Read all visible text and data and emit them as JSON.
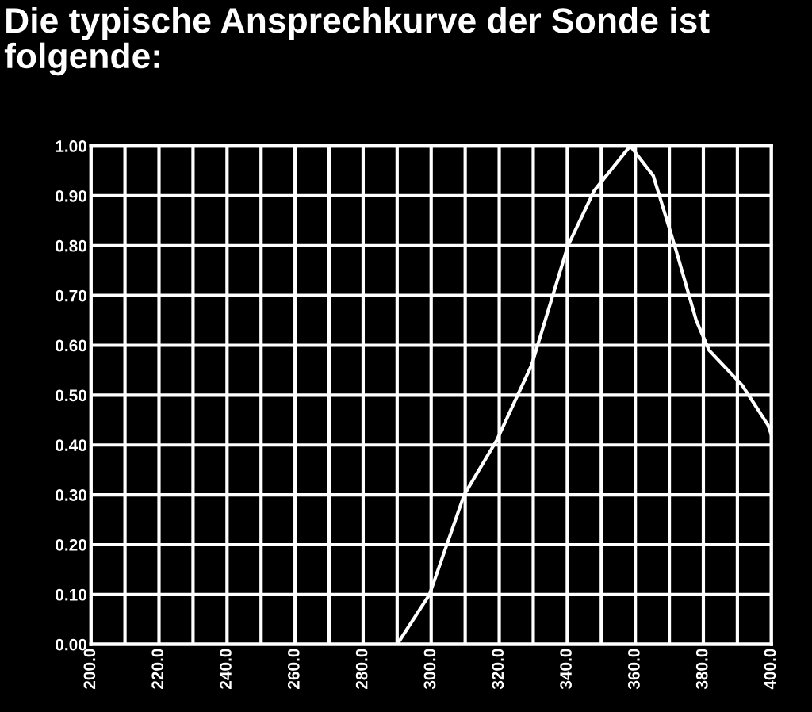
{
  "chart_data": {
    "type": "line",
    "title": "Die typische Ansprechkurve der Sonde ist folgende:",
    "x": [
      290,
      299.5,
      309.7,
      319.3,
      329.5,
      335.3,
      340.2,
      347.9,
      358.5,
      365.3,
      372,
      377.9,
      381.7,
      391.4,
      399,
      400
    ],
    "series": [
      {
        "color": "#ffffff",
        "values": [
          0.0,
          0.1,
          0.3,
          0.41,
          0.56,
          0.69,
          0.8,
          0.91,
          1.0,
          0.94,
          0.79,
          0.65,
          0.59,
          0.52,
          0.44,
          0.42
        ]
      }
    ],
    "xlim": [
      200,
      400
    ],
    "ylim": [
      0,
      1
    ],
    "xticks": [
      {
        "value": 200,
        "label": "200.0"
      },
      {
        "value": 210,
        "label": null
      },
      {
        "value": 220,
        "label": "220.0"
      },
      {
        "value": 230,
        "label": null
      },
      {
        "value": 240,
        "label": "240.0"
      },
      {
        "value": 250,
        "label": null
      },
      {
        "value": 260,
        "label": "260.0"
      },
      {
        "value": 270,
        "label": null
      },
      {
        "value": 280,
        "label": "280.0"
      },
      {
        "value": 290,
        "label": null
      },
      {
        "value": 300,
        "label": "300.0"
      },
      {
        "value": 310,
        "label": null
      },
      {
        "value": 320,
        "label": "320.0"
      },
      {
        "value": 330,
        "label": null
      },
      {
        "value": 340,
        "label": "340.0"
      },
      {
        "value": 350,
        "label": null
      },
      {
        "value": 360,
        "label": "360.0"
      },
      {
        "value": 370,
        "label": null
      },
      {
        "value": 380,
        "label": "380.0"
      },
      {
        "value": 390,
        "label": null
      },
      {
        "value": 400,
        "label": "400.0"
      }
    ],
    "yticks": [
      {
        "value": 0,
        "label": "0.00"
      },
      {
        "value": 0.1,
        "label": "0.10"
      },
      {
        "value": 0.2,
        "label": "0.20"
      },
      {
        "value": 0.3,
        "label": "0.30"
      },
      {
        "value": 0.4,
        "label": "0.40"
      },
      {
        "value": 0.5,
        "label": "0.50"
      },
      {
        "value": 0.6,
        "label": "0.60"
      },
      {
        "value": 0.7,
        "label": "0.70"
      },
      {
        "value": 0.8,
        "label": "0.80"
      },
      {
        "value": 0.9,
        "label": "0.90"
      },
      {
        "value": 1,
        "label": "1.00"
      }
    ],
    "grid": true,
    "marker": "none",
    "line_style": "solid"
  }
}
